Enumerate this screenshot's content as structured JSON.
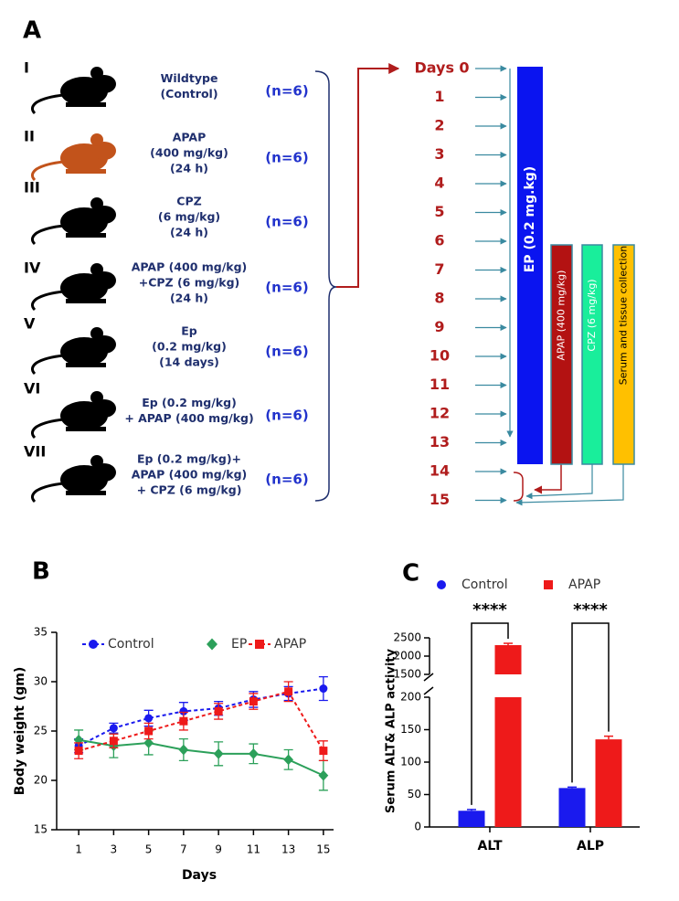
{
  "panel_a": {
    "label": "A",
    "groups": [
      {
        "numeral": "I",
        "treatment": [
          "Wildtype",
          "(Control)"
        ],
        "n": "(n=6)",
        "mouse_color": "#000000"
      },
      {
        "numeral": "II",
        "treatment": [
          "APAP",
          "(400 mg/kg)",
          "(24 h)"
        ],
        "n": "(n=6)",
        "mouse_color": "#c2531b"
      },
      {
        "numeral": "III",
        "treatment": [
          "CPZ",
          "(6 mg/kg)",
          "(24 h)"
        ],
        "n": "(n=6)",
        "mouse_color": "#000000"
      },
      {
        "numeral": "IV",
        "treatment": [
          "APAP (400 mg/kg)",
          "+CPZ (6 mg/kg)",
          "(24 h)"
        ],
        "n": "(n=6)",
        "mouse_color": "#000000"
      },
      {
        "numeral": "V",
        "treatment": [
          "Ep",
          "(0.2 mg/kg)",
          "(14 days)"
        ],
        "n": "(n=6)",
        "mouse_color": "#000000"
      },
      {
        "numeral": "VI",
        "treatment": [
          "Ep (0.2 mg/kg)",
          "+ APAP (400 mg/kg)"
        ],
        "n": "(n=6)",
        "mouse_color": "#000000"
      },
      {
        "numeral": "VII",
        "treatment": [
          "Ep (0.2 mg/kg)+",
          "APAP (400 mg/kg)",
          "+ CPZ (6 mg/kg)"
        ],
        "n": "(n=6)",
        "mouse_color": "#000000"
      }
    ],
    "days_label": "Days",
    "days": [
      0,
      1,
      2,
      3,
      4,
      5,
      6,
      7,
      8,
      9,
      10,
      11,
      12,
      13,
      14,
      15
    ],
    "bars": [
      {
        "label": "EP (0.2 mg.kg)",
        "color": "#0a14f0"
      },
      {
        "label": "APAP (400 mg/kg)",
        "color": "#b31212"
      },
      {
        "label": "CPZ (6 mg/kg)",
        "color": "#19ee9b"
      },
      {
        "label": "Serum and tissue collection",
        "color": "#ffc000"
      }
    ]
  },
  "chart_data": [
    {
      "type": "line",
      "label": "B",
      "xlabel": "Days",
      "ylabel": "Body weight (gm)",
      "x": [
        1,
        3,
        5,
        7,
        9,
        11,
        13,
        15
      ],
      "xlim": [
        0,
        16
      ],
      "xticks": [
        1,
        3,
        5,
        7,
        9,
        11,
        13,
        15
      ],
      "ylim": [
        15,
        35
      ],
      "yticks": [
        15,
        20,
        25,
        30,
        35
      ],
      "series": [
        {
          "name": "Control",
          "color": "#1a1aee",
          "marker": "circle",
          "dashed": true,
          "values": [
            23.5,
            25.3,
            26.3,
            27.0,
            27.3,
            28.2,
            28.8,
            29.3
          ],
          "errors": [
            0.7,
            0.5,
            0.8,
            0.9,
            0.7,
            0.8,
            0.7,
            1.2
          ]
        },
        {
          "name": "EP",
          "color": "#2ca05a",
          "marker": "diamond",
          "dashed": false,
          "values": [
            24.1,
            23.5,
            23.8,
            23.1,
            22.7,
            22.7,
            22.1,
            20.5
          ],
          "errors": [
            1.0,
            1.2,
            1.2,
            1.1,
            1.2,
            1.0,
            1.0,
            1.5
          ]
        },
        {
          "name": "APAP",
          "color": "#ee1a1a",
          "marker": "square",
          "dashed": true,
          "values": [
            23.0,
            24.0,
            25.0,
            26.0,
            27.0,
            28.0,
            29.0,
            23.0
          ],
          "errors": [
            0.8,
            0.7,
            0.8,
            0.9,
            0.8,
            0.8,
            1.0,
            1.0
          ]
        }
      ]
    },
    {
      "type": "bar",
      "label": "C",
      "ylabel": "Serum ALT& ALP activity",
      "categories": [
        "ALT",
        "ALP"
      ],
      "ylim_segments": [
        [
          0,
          200
        ],
        [
          1500,
          2500
        ]
      ],
      "yticks": [
        0,
        50,
        100,
        150,
        200,
        1500,
        2000,
        2500
      ],
      "series": [
        {
          "name": "Control",
          "color": "#1a1aee",
          "marker": "circle",
          "values": [
            25,
            60
          ],
          "errors": [
            2,
            1.5
          ]
        },
        {
          "name": "APAP",
          "color": "#ee1a1a",
          "marker": "square",
          "values": [
            2300,
            135
          ],
          "errors": [
            50,
            5
          ]
        }
      ],
      "annotations": [
        "****",
        "****"
      ]
    }
  ]
}
